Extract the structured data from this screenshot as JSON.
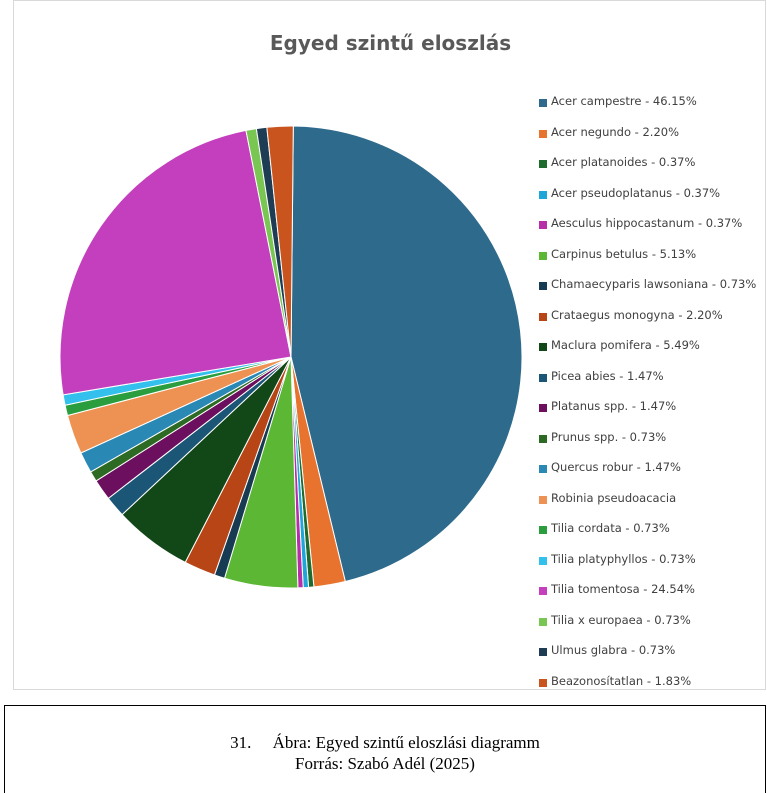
{
  "chart_data": {
    "type": "pie",
    "title": "Egyed szintű eloszlás",
    "legend_position": "right",
    "slices": [
      {
        "label": "Acer campestre - 46.15%",
        "value": 46.15,
        "color": "#2e6a8c"
      },
      {
        "label": "Acer negundo - 2.20%",
        "value": 2.2,
        "color": "#e8732e"
      },
      {
        "label": "Acer platanoides - 0.37%",
        "value": 0.37,
        "color": "#1e6b2e"
      },
      {
        "label": "Acer pseudoplatanus - 0.37%",
        "value": 0.37,
        "color": "#1ea6d9"
      },
      {
        "label": "Aesculus hippocastanum - 0.37%",
        "value": 0.37,
        "color": "#b62fa8"
      },
      {
        "label": "Carpinus betulus - 5.13%",
        "value": 5.13,
        "color": "#5cb734"
      },
      {
        "label": "Chamaecyparis lawsoniana - 0.73%",
        "value": 0.73,
        "color": "#173b52"
      },
      {
        "label": "Crataegus monogyna - 2.20%",
        "value": 2.2,
        "color": "#b84516"
      },
      {
        "label": "Maclura pomifera - 5.49%",
        "value": 5.49,
        "color": "#124718"
      },
      {
        "label": "Picea abies - 1.47%",
        "value": 1.47,
        "color": "#1b5676"
      },
      {
        "label": "Platanus spp. - 1.47%",
        "value": 1.47,
        "color": "#6b0f5e"
      },
      {
        "label": "Prunus spp. -  0.73%",
        "value": 0.73,
        "color": "#2d6b24"
      },
      {
        "label": "Quercus robur - 1.47%",
        "value": 1.47,
        "color": "#2a88b5"
      },
      {
        "label": "Robinia pseudoacacia",
        "value": 2.75,
        "color": "#ee9254"
      },
      {
        "label": "Tilia cordata -  0.73%",
        "value": 0.73,
        "color": "#2a9e3e"
      },
      {
        "label": "Tilia platyphyllos -  0.73%",
        "value": 0.73,
        "color": "#33c0ec"
      },
      {
        "label": "Tilia tomentosa - 24.54%",
        "value": 24.54,
        "color": "#c43fbd"
      },
      {
        "label": "Tilia x europaea -  0.73%",
        "value": 0.73,
        "color": "#7ac653"
      },
      {
        "label": "Ulmus glabra  - 0.73%",
        "value": 0.73,
        "color": "#1f3c55"
      },
      {
        "label": "Beazonosítatlan - 1.83%",
        "value": 1.83,
        "color": "#c9541d"
      }
    ]
  },
  "caption": {
    "line1": "31.     Ábra: Egyed szintű eloszlási diagramm",
    "line2": "Forrás: Szabó Adél (2025)"
  }
}
